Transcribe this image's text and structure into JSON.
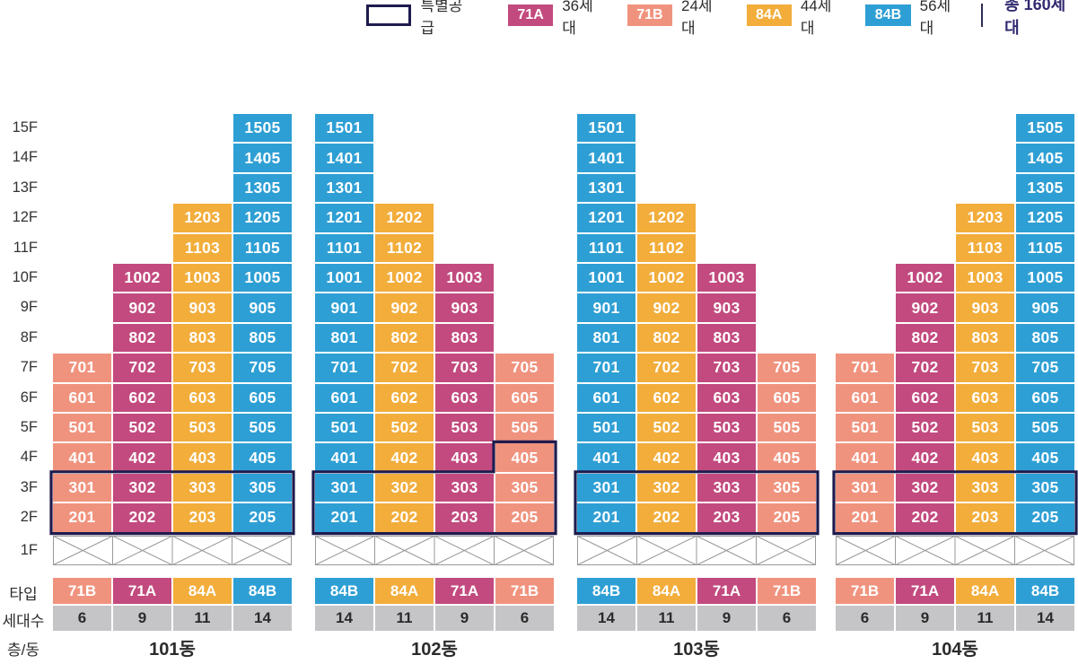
{
  "colors": {
    "71A": "#c24a7e",
    "71B": "#f0937e",
    "84A": "#f2ad3b",
    "84B": "#2e9fd4",
    "navy_outline": "#1e1b4e",
    "total_text": "#312a70",
    "gray_cell": "#c5c4c7",
    "grid_line": "#999999",
    "text_dark": "#2d2d2d"
  },
  "legend": {
    "special_label": "특별공급",
    "items": [
      {
        "type": "71A",
        "count_label": "36세대"
      },
      {
        "type": "71B",
        "count_label": "24세대"
      },
      {
        "type": "84A",
        "count_label": "44세대"
      },
      {
        "type": "84B",
        "count_label": "56세대"
      }
    ],
    "total_label": "총 160세대"
  },
  "axis": {
    "floors": [
      "15F",
      "14F",
      "13F",
      "12F",
      "11F",
      "10F",
      "9F",
      "8F",
      "7F",
      "6F",
      "5F",
      "4F",
      "3F",
      "2F",
      "1F"
    ]
  },
  "row_labels": {
    "type": "타입",
    "households": "세대수",
    "floor_building": "층/동"
  },
  "buildings": [
    {
      "name": "101동",
      "columns": [
        {
          "type": "71B",
          "households": "6",
          "units": [
            "201",
            "301",
            "401",
            "501",
            "601",
            "701"
          ]
        },
        {
          "type": "71A",
          "households": "9",
          "units": [
            "202",
            "302",
            "402",
            "502",
            "602",
            "702",
            "802",
            "902",
            "1002"
          ]
        },
        {
          "type": "84A",
          "households": "11",
          "units": [
            "203",
            "303",
            "403",
            "503",
            "603",
            "703",
            "803",
            "903",
            "1003",
            "1103",
            "1203"
          ]
        },
        {
          "type": "84B",
          "households": "14",
          "units": [
            "205",
            "305",
            "405",
            "505",
            "605",
            "705",
            "805",
            "905",
            "1005",
            "1105",
            "1205",
            "1305",
            "1405",
            "1505"
          ]
        }
      ],
      "special_supply": {
        "floors": [
          "3F",
          "2F"
        ],
        "extra_units": []
      }
    },
    {
      "name": "102동",
      "columns": [
        {
          "type": "84B",
          "households": "14",
          "units": [
            "201",
            "301",
            "401",
            "501",
            "601",
            "701",
            "801",
            "901",
            "1001",
            "1101",
            "1201",
            "1301",
            "1401",
            "1501"
          ]
        },
        {
          "type": "84A",
          "households": "11",
          "units": [
            "202",
            "302",
            "402",
            "502",
            "602",
            "702",
            "802",
            "902",
            "1002",
            "1102",
            "1202"
          ]
        },
        {
          "type": "71A",
          "households": "9",
          "units": [
            "203",
            "303",
            "403",
            "503",
            "603",
            "703",
            "803",
            "903",
            "1003"
          ]
        },
        {
          "type": "71B",
          "households": "6",
          "units": [
            "205",
            "305",
            "405",
            "505",
            "605",
            "705"
          ]
        }
      ],
      "special_supply": {
        "floors": [
          "3F",
          "2F"
        ],
        "extra_units": [
          "405"
        ]
      }
    },
    {
      "name": "103동",
      "columns": [
        {
          "type": "84B",
          "households": "14",
          "units": [
            "201",
            "301",
            "401",
            "501",
            "601",
            "701",
            "801",
            "901",
            "1001",
            "1101",
            "1201",
            "1301",
            "1401",
            "1501"
          ]
        },
        {
          "type": "84A",
          "households": "11",
          "units": [
            "202",
            "302",
            "402",
            "502",
            "602",
            "702",
            "802",
            "902",
            "1002",
            "1102",
            "1202"
          ]
        },
        {
          "type": "71A",
          "households": "9",
          "units": [
            "203",
            "303",
            "403",
            "503",
            "603",
            "703",
            "803",
            "903",
            "1003"
          ]
        },
        {
          "type": "71B",
          "households": "6",
          "units": [
            "205",
            "305",
            "405",
            "505",
            "605",
            "705"
          ]
        }
      ],
      "special_supply": {
        "floors": [
          "3F",
          "2F"
        ],
        "extra_units": []
      }
    },
    {
      "name": "104동",
      "columns": [
        {
          "type": "71B",
          "households": "6",
          "units": [
            "201",
            "301",
            "401",
            "501",
            "601",
            "701"
          ]
        },
        {
          "type": "71A",
          "households": "9",
          "units": [
            "202",
            "302",
            "402",
            "502",
            "602",
            "702",
            "802",
            "902",
            "1002"
          ]
        },
        {
          "type": "84A",
          "households": "11",
          "units": [
            "203",
            "303",
            "403",
            "503",
            "603",
            "703",
            "803",
            "903",
            "1003",
            "1103",
            "1203"
          ]
        },
        {
          "type": "84B",
          "households": "14",
          "units": [
            "205",
            "305",
            "405",
            "505",
            "605",
            "705",
            "805",
            "905",
            "1005",
            "1105",
            "1205",
            "1305",
            "1405",
            "1505"
          ]
        }
      ],
      "special_supply": {
        "floors": [
          "3F",
          "2F"
        ],
        "extra_units": []
      }
    }
  ]
}
